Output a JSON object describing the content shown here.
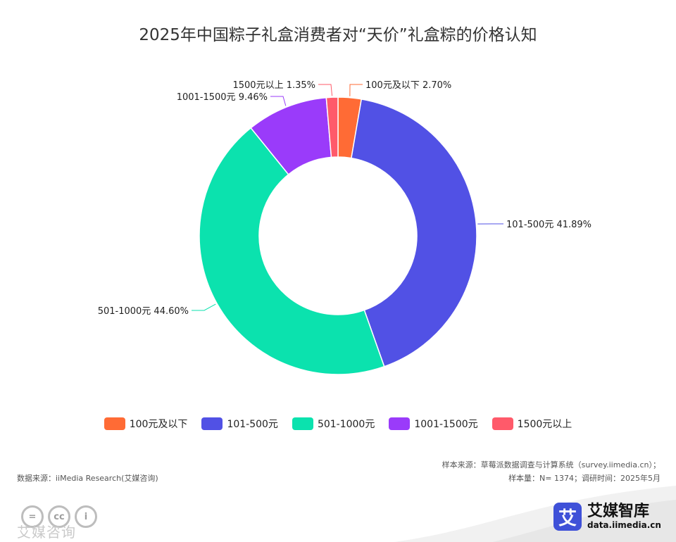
{
  "chart_data": {
    "type": "pie",
    "variant": "donut",
    "title": "2025年中国粽子礼盒消费者对“天价”礼盒粽的价格认知",
    "slices": [
      {
        "name": "100元及以下",
        "value": 2.7,
        "label": "100元及以下 2.70%",
        "color": "#FF6B35"
      },
      {
        "name": "101-500元",
        "value": 41.89,
        "label": "101-500元 41.89%",
        "color": "#5151E5"
      },
      {
        "name": "501-1000元",
        "value": 44.6,
        "label": "501-1000元 44.60%",
        "color": "#0BE2AE"
      },
      {
        "name": "1001-1500元",
        "value": 9.46,
        "label": "1001-1500元 9.46%",
        "color": "#9A3BFA"
      },
      {
        "name": "1500元以上",
        "value": 1.35,
        "label": "1500元以上 1.35%",
        "color": "#FF5A6A"
      }
    ],
    "legend_position": "bottom-center"
  },
  "footer": {
    "data_source": "数据来源：iiMedia Research(艾媒咨询)",
    "sample_source": "样本来源：草莓派数据调查与计算系统（survey.iimedia.cn）；",
    "sample_size": "样本量：N= 1374；调研时间：2025年5月",
    "watermark": "艾媒咨询",
    "brand_logo_char": "艾",
    "brand_name": "艾媒智库",
    "brand_url": "data.iimedia.cn",
    "cc_badges": [
      "=",
      "cc",
      "i"
    ]
  }
}
